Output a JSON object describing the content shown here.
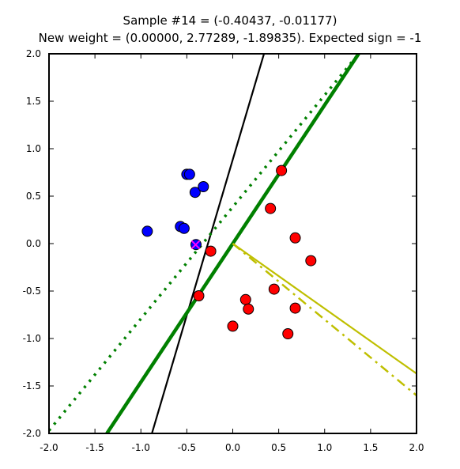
{
  "chart_data": {
    "type": "scatter",
    "title_lines": [
      "Sample #14 = (-0.40437, -0.01177)",
      "New weight = (0.00000, 2.77289, -1.89835). Expected sign = -1"
    ],
    "xlabel": "",
    "ylabel": "",
    "xlim": [
      -2.0,
      2.0
    ],
    "ylim": [
      -2.0,
      2.0
    ],
    "xticks": [
      "-2.0",
      "-1.5",
      "-1.0",
      "-0.5",
      "0.0",
      "0.5",
      "1.0",
      "1.5",
      "2.0"
    ],
    "yticks": [
      "-2.0",
      "-1.5",
      "-1.0",
      "-0.5",
      "0.0",
      "0.5",
      "1.0",
      "1.5",
      "2.0"
    ],
    "grid": false,
    "legend": "none",
    "current_sample": {
      "x": -0.40437,
      "y": -0.01177,
      "marker": "x",
      "color": "#ff00ff"
    },
    "series": [
      {
        "class": "positive",
        "color": "#0000ff",
        "points": [
          [
            -0.93,
            0.13
          ],
          [
            -0.57,
            0.18
          ],
          [
            -0.53,
            0.16
          ],
          [
            -0.5,
            0.73
          ],
          [
            -0.47,
            0.73
          ],
          [
            -0.41,
            0.54
          ],
          [
            -0.32,
            0.6
          ],
          [
            -0.4,
            -0.01
          ]
        ]
      },
      {
        "class": "negative",
        "color": "#ff0000",
        "points": [
          [
            -0.24,
            -0.08
          ],
          [
            -0.37,
            -0.55
          ],
          [
            0.0,
            -0.87
          ],
          [
            0.14,
            -0.59
          ],
          [
            0.17,
            -0.69
          ],
          [
            0.41,
            0.37
          ],
          [
            0.45,
            -0.48
          ],
          [
            0.53,
            0.77
          ],
          [
            0.6,
            -0.95
          ],
          [
            0.68,
            0.06
          ],
          [
            0.68,
            -0.68
          ],
          [
            0.85,
            -0.18
          ]
        ]
      }
    ],
    "lines": [
      {
        "role": "target-separator",
        "color": "#000000",
        "style": "solid",
        "points": [
          [
            -0.88,
            -2.0
          ],
          [
            0.34,
            2.0
          ]
        ]
      },
      {
        "role": "new-boundary",
        "color": "#008000",
        "style": "solid-thick",
        "points": [
          [
            -1.37,
            -2.0
          ],
          [
            1.37,
            2.0
          ]
        ]
      },
      {
        "role": "previous-boundary",
        "color": "#008000",
        "style": "dotted",
        "points": [
          [
            -2.0,
            -1.97
          ],
          [
            1.37,
            2.0
          ]
        ]
      },
      {
        "role": "new-weight-vector",
        "color": "#bfbf00",
        "style": "solid",
        "points": [
          [
            0.0,
            0.0
          ],
          [
            2.0,
            -1.37
          ]
        ]
      },
      {
        "role": "previous-weight-vector",
        "color": "#bfbf00",
        "style": "dashdot",
        "points": [
          [
            0.0,
            0.0
          ],
          [
            2.0,
            -1.6
          ]
        ]
      }
    ]
  }
}
